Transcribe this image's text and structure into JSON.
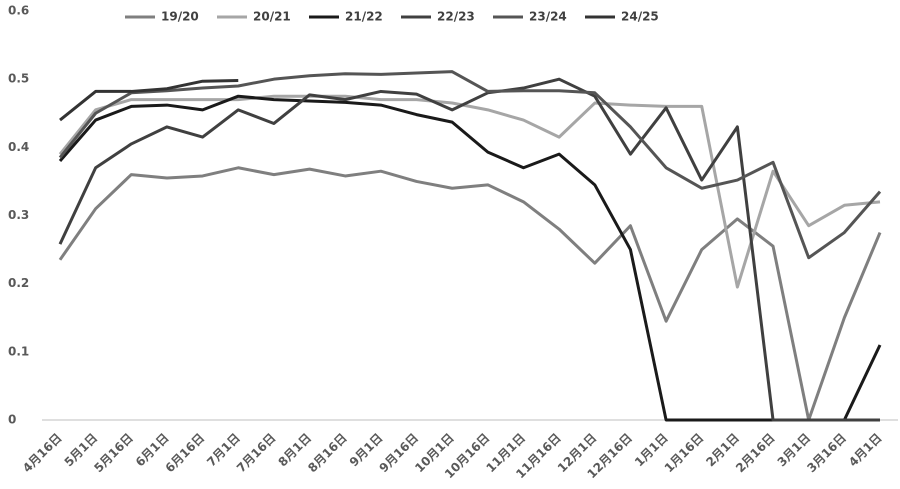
{
  "chart_data": {
    "type": "line",
    "categories": [
      "4月16日",
      "5月1日",
      "5月16日",
      "6月1日",
      "6月16日",
      "7月1日",
      "7月16日",
      "8月1日",
      "8月16日",
      "9月1日",
      "9月16日",
      "10月1日",
      "10月16日",
      "11月1日",
      "11月16日",
      "12月1日",
      "12月16日",
      "1月1日",
      "1月16日",
      "2月1日",
      "2月16日",
      "3月1日",
      "3月16日",
      "4月1日"
    ],
    "series": [
      {
        "name": "19/20",
        "color": "#7f7f7f",
        "values": [
          0.235,
          0.31,
          0.36,
          0.355,
          0.358,
          0.37,
          0.36,
          0.368,
          0.358,
          0.365,
          0.35,
          0.34,
          0.345,
          0.32,
          0.28,
          0.23,
          0.285,
          0.145,
          0.25,
          0.295,
          0.255,
          0.0,
          0.15,
          0.275
        ]
      },
      {
        "name": "20/21",
        "color": "#a6a6a6",
        "values": [
          0.39,
          0.455,
          0.47,
          0.47,
          0.47,
          0.47,
          0.475,
          0.475,
          0.475,
          0.47,
          0.47,
          0.465,
          0.455,
          0.44,
          0.415,
          0.465,
          0.462,
          0.46,
          0.46,
          0.195,
          0.365,
          0.285,
          0.315,
          0.32
        ]
      },
      {
        "name": "21/22",
        "color": "#1a1a1a",
        "values": [
          0.38,
          0.44,
          0.46,
          0.462,
          0.455,
          0.475,
          0.47,
          0.468,
          0.466,
          0.462,
          0.448,
          0.437,
          0.393,
          0.37,
          0.39,
          0.345,
          0.25,
          0,
          0,
          0,
          0,
          0,
          0,
          0.11
        ]
      },
      {
        "name": "22/23",
        "color": "#404040",
        "values": [
          0.258,
          0.37,
          0.405,
          0.43,
          0.415,
          0.455,
          0.435,
          0.477,
          0.47,
          0.482,
          0.478,
          0.455,
          0.48,
          0.487,
          0.5,
          0.475,
          0.39,
          0.458,
          0.352,
          0.43,
          0,
          0,
          0,
          0
        ]
      },
      {
        "name": "23/24",
        "color": "#555555",
        "values": [
          0.385,
          0.45,
          0.48,
          0.483,
          0.487,
          0.49,
          0.5,
          0.505,
          0.508,
          0.507,
          0.509,
          0.511,
          0.482,
          0.483,
          0.483,
          0.48,
          0.43,
          0.37,
          0.34,
          0.352,
          0.378,
          0.238,
          0.275,
          0.335
        ]
      },
      {
        "name": "24/25",
        "color": "#333333",
        "values": [
          0.44,
          0.482,
          0.482,
          0.486,
          0.497,
          0.498,
          null,
          null,
          null,
          null,
          null,
          null,
          null,
          null,
          null,
          null,
          null,
          null,
          null,
          null,
          null,
          null,
          null,
          null
        ]
      }
    ],
    "ylim": [
      0,
      0.6
    ],
    "yticks": [
      0,
      0.1,
      0.2,
      0.3,
      0.4,
      0.5,
      0.6
    ],
    "grid": false,
    "legend": "top"
  }
}
